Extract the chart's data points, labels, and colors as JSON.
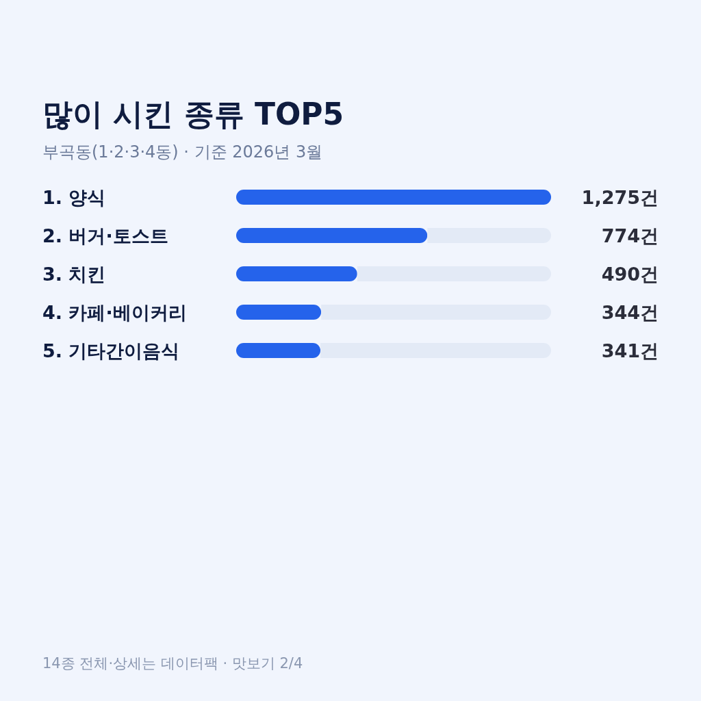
{
  "chart_data": {
    "type": "bar",
    "orientation": "horizontal",
    "title": "많이 시킨 종류 TOP5",
    "subtitle": "부곡동(1·2·3·4동) · 기준 2026년 3월",
    "categories": [
      "1. 양식",
      "2. 버거·토스트",
      "3. 치킨",
      "4. 카페·베이커리",
      "5. 기타간이음식"
    ],
    "values": [
      1275,
      774,
      490,
      344,
      341
    ],
    "value_labels": [
      "1,275건",
      "774건",
      "490건",
      "344건",
      "341건"
    ],
    "color": "#2563eb",
    "annotations": [
      "14종 전체·상세는 데이터팩 · 맛보기 2/4"
    ]
  }
}
